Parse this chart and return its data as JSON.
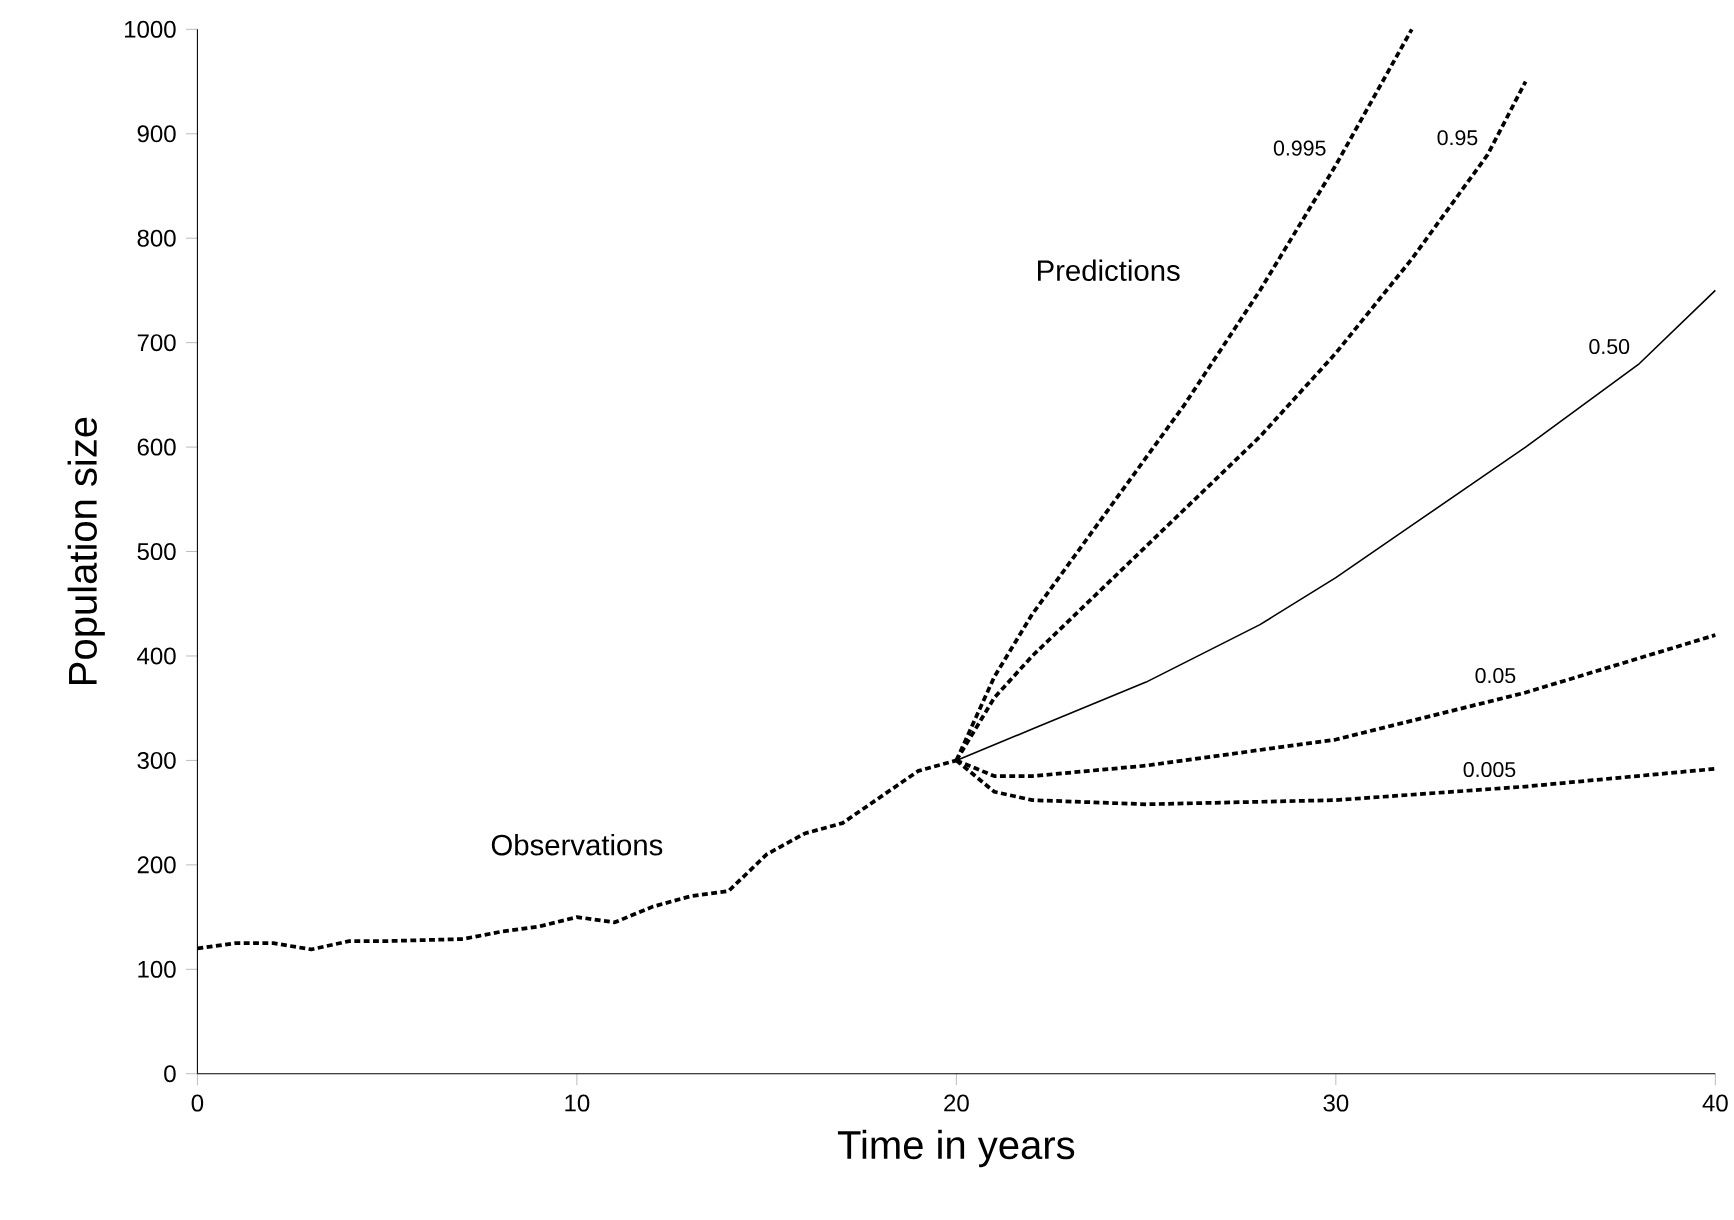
{
  "chart_data": {
    "type": "line",
    "xlabel": "Time in years",
    "ylabel": "Population size",
    "xlim": [
      0,
      40
    ],
    "ylim": [
      0,
      1000
    ],
    "xticks": [
      0,
      10,
      20,
      30,
      40
    ],
    "yticks": [
      0,
      100,
      200,
      300,
      400,
      500,
      600,
      700,
      800,
      900,
      1000
    ],
    "grid": false,
    "marker": "none",
    "annotations": [
      "Observations",
      "Predictions"
    ],
    "series": [
      {
        "color": "#000000",
        "line_style": "dashed",
        "x": [
          0,
          1,
          2,
          3,
          4,
          5,
          6,
          7,
          8,
          9,
          10,
          11,
          12,
          13,
          14,
          15,
          16,
          17,
          18,
          19,
          20
        ],
        "values": [
          120,
          125,
          125,
          119,
          127,
          127,
          128,
          129,
          136,
          141,
          150,
          145,
          160,
          170,
          175,
          210,
          230,
          240,
          265,
          290,
          300
        ]
      },
      {
        "name": "0.995",
        "color": "#000000",
        "line_style": "dashed",
        "x": [
          20,
          21,
          22,
          24,
          26,
          28,
          30,
          32
        ],
        "values": [
          300,
          380,
          440,
          540,
          640,
          750,
          870,
          1000
        ]
      },
      {
        "name": "0.95",
        "color": "#000000",
        "line_style": "dashed",
        "x": [
          20,
          21,
          22,
          24,
          26,
          28,
          30,
          32,
          34,
          35
        ],
        "values": [
          300,
          360,
          400,
          470,
          540,
          610,
          690,
          780,
          880,
          950
        ]
      },
      {
        "name": "0.50",
        "color": "#000000",
        "line_style": "solid",
        "x": [
          20,
          22,
          25,
          28,
          30,
          32,
          35,
          38,
          40
        ],
        "values": [
          300,
          330,
          375,
          430,
          475,
          525,
          600,
          680,
          750
        ]
      },
      {
        "name": "0.05",
        "color": "#000000",
        "line_style": "dashed",
        "x": [
          20,
          21,
          22,
          25,
          30,
          35,
          40
        ],
        "values": [
          300,
          285,
          285,
          295,
          320,
          365,
          420
        ]
      },
      {
        "name": "0.005",
        "color": "#000000",
        "line_style": "dashed",
        "x": [
          20,
          21,
          22,
          25,
          30,
          35,
          40
        ],
        "values": [
          300,
          270,
          262,
          258,
          262,
          275,
          292
        ]
      }
    ]
  }
}
